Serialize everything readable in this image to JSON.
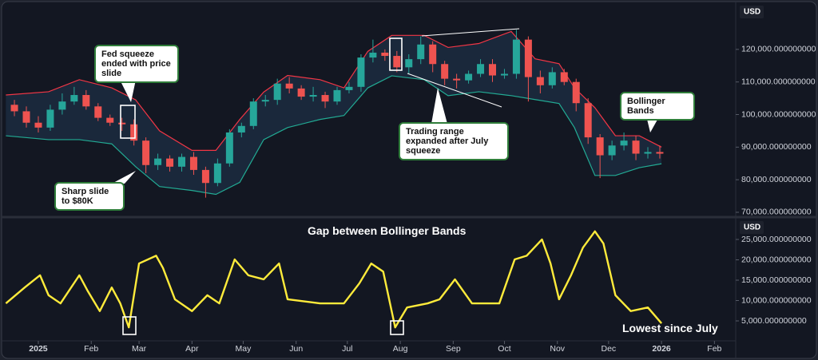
{
  "chart_data": [
    {
      "type": "candlestick",
      "y_unit": "USD",
      "x": [
        -14,
        -7,
        0,
        7,
        14,
        21,
        28,
        35,
        42,
        49,
        56,
        63,
        70,
        77,
        84,
        91,
        98,
        105,
        112,
        119,
        126,
        133,
        140,
        147,
        154,
        161,
        168,
        175,
        182,
        189,
        196,
        203,
        210,
        217,
        224,
        231,
        238,
        245,
        252,
        259,
        266,
        273,
        280,
        287,
        294,
        301,
        308,
        315,
        322,
        329,
        336,
        343,
        350,
        357,
        364
      ],
      "open": [
        103000,
        101000,
        97500,
        96000,
        101500,
        104000,
        106000,
        102500,
        99000,
        97500,
        97000,
        92000,
        84500,
        86500,
        84000,
        87000,
        83000,
        79000,
        85000,
        94500,
        96500,
        104000,
        104500,
        109500,
        108000,
        105500,
        106000,
        104000,
        107500,
        108500,
        117500,
        119000,
        118000,
        114500,
        117000,
        121500,
        115500,
        111000,
        110500,
        112500,
        115500,
        112000,
        112500,
        123000,
        111500,
        109000,
        113000,
        110000,
        103500,
        93000,
        87500,
        90500,
        92000,
        88000,
        88500
      ],
      "high": [
        104500,
        102500,
        99500,
        103000,
        106500,
        108500,
        107500,
        103500,
        100000,
        99000,
        98500,
        93000,
        88000,
        87500,
        88000,
        88500,
        84000,
        86500,
        95500,
        97500,
        105000,
        106000,
        111000,
        111500,
        109000,
        108500,
        107000,
        108500,
        110000,
        118500,
        123000,
        120000,
        119500,
        118500,
        124000,
        122500,
        116500,
        112500,
        113500,
        117000,
        117000,
        114000,
        126000,
        124000,
        113500,
        114500,
        114000,
        111000,
        105000,
        94000,
        92000,
        94500,
        93500,
        90000,
        90500
      ],
      "low": [
        99500,
        96000,
        94500,
        95000,
        100000,
        103000,
        101500,
        98000,
        96500,
        95000,
        90500,
        82000,
        83000,
        82500,
        82500,
        81500,
        74500,
        78000,
        84000,
        93000,
        95500,
        102500,
        103000,
        106500,
        104500,
        104000,
        102000,
        103000,
        106500,
        107000,
        116000,
        116500,
        113000,
        112500,
        115500,
        113000,
        109000,
        108000,
        109500,
        111500,
        110000,
        111000,
        111000,
        104000,
        106500,
        108000,
        109000,
        101000,
        91000,
        80500,
        86000,
        89000,
        86000,
        86500,
        86500
      ],
      "close": [
        101000,
        97500,
        96000,
        101500,
        104000,
        106000,
        102500,
        99000,
        97500,
        97000,
        92000,
        84500,
        86500,
        84000,
        87000,
        83000,
        79000,
        85000,
        94500,
        96500,
        104000,
        104500,
        109500,
        108000,
        105500,
        106000,
        104000,
        107500,
        108500,
        117500,
        119000,
        118000,
        114500,
        117000,
        121500,
        115500,
        111000,
        110500,
        112500,
        115500,
        112000,
        112500,
        123000,
        111500,
        109000,
        113000,
        110000,
        103500,
        93000,
        87500,
        90500,
        92000,
        88000,
        88500,
        88000
      ],
      "up_color": "#26a69a",
      "down_color": "#ef5350",
      "bands": {
        "x": [
          -19,
          6,
          24,
          43,
          57,
          71,
          90,
          104,
          118,
          132,
          146,
          165,
          179,
          193,
          207,
          226,
          240,
          258,
          277,
          291,
          305,
          314,
          326,
          338,
          352,
          365
        ],
        "upper": {
          "color": "#f23645",
          "values": [
            106000,
            107000,
            110700,
            108200,
            104500,
            95000,
            89000,
            89000,
            98500,
            106900,
            112000,
            110700,
            108200,
            119400,
            124300,
            124300,
            120600,
            121800,
            125500,
            117100,
            115600,
            108200,
            102100,
            93500,
            93500,
            90000
          ]
        },
        "lower": {
          "color": "#22ab94",
          "values": [
            93500,
            92300,
            92300,
            91000,
            84000,
            77900,
            76700,
            75500,
            79200,
            92300,
            96000,
            98500,
            99700,
            108200,
            111900,
            110700,
            105800,
            107000,
            105800,
            104600,
            103400,
            96000,
            81300,
            81300,
            83700,
            84900
          ]
        },
        "fill": "#1c2b40"
      },
      "xlim": [
        -18.7,
        408
      ],
      "ylim": [
        69500,
        133200
      ],
      "yticks": [
        {
          "value": 70000,
          "label": "70,000.000000000"
        },
        {
          "value": 80000,
          "label": "80,000.000000000"
        },
        {
          "value": 90000,
          "label": "90,000.000000000"
        },
        {
          "value": 100000,
          "label": "100,000.000000000"
        },
        {
          "value": 110000,
          "label": "110,000.000000000"
        },
        {
          "value": 120000,
          "label": "120,000.000000000"
        }
      ],
      "annotations": [
        "Fed squeeze ended with price slide",
        "Sharp slide to $80K",
        "Trading range expanded after July squeeze",
        "Bollinger Bands"
      ]
    },
    {
      "type": "line",
      "title": "Gap between Bollinger Bands",
      "y_unit": "USD",
      "color": "#ffeb3b",
      "x": [
        -19,
        -8,
        1,
        6,
        13,
        24,
        29,
        36,
        43,
        48,
        53,
        59,
        69,
        73,
        80,
        90,
        99,
        106,
        115,
        123,
        132,
        141,
        146,
        165,
        179,
        188,
        195,
        202,
        209,
        216,
        228,
        235,
        244,
        254,
        270,
        279,
        286,
        295,
        300,
        305,
        312,
        319,
        326,
        331,
        338,
        347,
        357,
        365
      ],
      "values": [
        9300,
        13200,
        16200,
        11300,
        9300,
        16200,
        12300,
        7400,
        13200,
        9300,
        3400,
        19100,
        21000,
        18000,
        10300,
        7400,
        11300,
        9300,
        20100,
        16200,
        15200,
        19100,
        10300,
        9300,
        9300,
        14200,
        19100,
        17100,
        3400,
        8300,
        9300,
        10300,
        15200,
        9300,
        9300,
        20100,
        21000,
        25000,
        19100,
        10300,
        16200,
        23000,
        27000,
        24000,
        11300,
        7400,
        8300,
        4400
      ],
      "xlim": [
        -18.7,
        408
      ],
      "ylim": [
        490,
        29310
      ],
      "yticks": [
        {
          "value": 5000,
          "label": "5,000.000000000"
        },
        {
          "value": 10000,
          "label": "10,000.000000000"
        },
        {
          "value": 15000,
          "label": "15,000.000000000"
        },
        {
          "value": 20000,
          "label": "20,000.000000000"
        },
        {
          "value": 25000,
          "label": "25,000.000000000"
        }
      ],
      "xticks": [
        {
          "value": 0,
          "label": "2025"
        },
        {
          "value": 31,
          "label": "Feb"
        },
        {
          "value": 59,
          "label": "Mar"
        },
        {
          "value": 90,
          "label": "Apr"
        },
        {
          "value": 120,
          "label": "May"
        },
        {
          "value": 151,
          "label": "Jun"
        },
        {
          "value": 181,
          "label": "Jul"
        },
        {
          "value": 212,
          "label": "Aug"
        },
        {
          "value": 243,
          "label": "Sep"
        },
        {
          "value": 273,
          "label": "Oct"
        },
        {
          "value": 304,
          "label": "Nov"
        },
        {
          "value": 334,
          "label": "Dec"
        },
        {
          "value": 365,
          "label": "2026"
        },
        {
          "value": 396,
          "label": "Feb"
        }
      ],
      "annotations": [
        "Lowest since July"
      ]
    }
  ]
}
